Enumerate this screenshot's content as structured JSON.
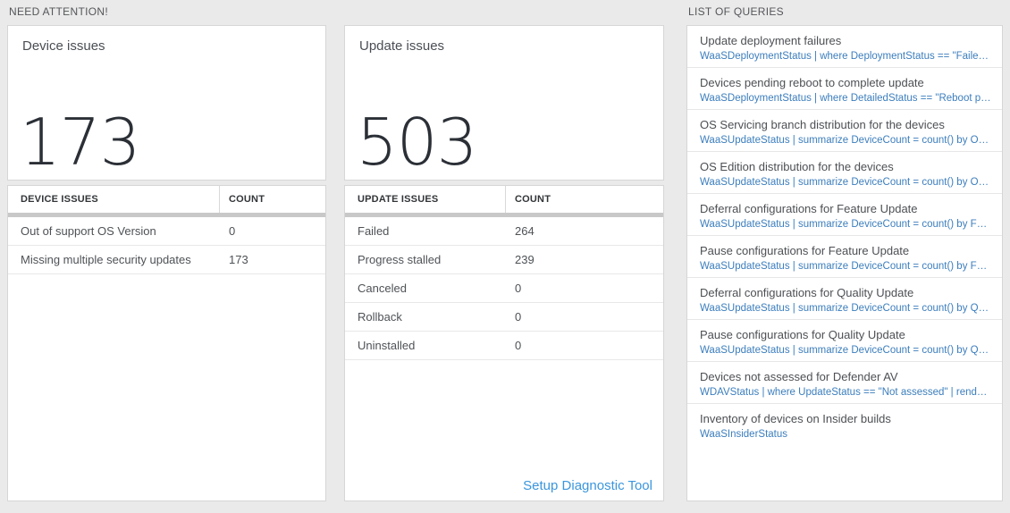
{
  "colors": {
    "page_background": "#eaeaea",
    "card_border": "#d6d6d6",
    "big_number_text": "#2b2f36",
    "table_header_bar": "#c8c8c8",
    "query_link_blue": "#3c7ebd",
    "diagnostic_link_blue": "#3a96dd"
  },
  "need_attention": {
    "section_title": "NEED ATTENTION!",
    "cards": [
      {
        "title": "Device issues",
        "big_number": 173,
        "table": {
          "headers": [
            "DEVICE ISSUES",
            "COUNT"
          ],
          "rows": [
            {
              "label": "Out of support OS Version",
              "count": 0
            },
            {
              "label": "Missing multiple security updates",
              "count": 173
            }
          ]
        }
      },
      {
        "title": "Update issues",
        "big_number": 503,
        "table": {
          "headers": [
            "UPDATE ISSUES",
            "COUNT"
          ],
          "rows": [
            {
              "label": "Failed",
              "count": 264
            },
            {
              "label": "Progress stalled",
              "count": 239
            },
            {
              "label": "Canceled",
              "count": 0
            },
            {
              "label": "Rollback",
              "count": 0
            },
            {
              "label": "Uninstalled",
              "count": 0
            }
          ]
        },
        "footer_link": "Setup Diagnostic Tool"
      }
    ]
  },
  "queries": {
    "section_title": "LIST OF QUERIES",
    "items": [
      {
        "title": "Update deployment failures",
        "query": "WaaSDeploymentStatus | where DeploymentStatus == \"Failed\" |..."
      },
      {
        "title": "Devices pending reboot to complete update",
        "query": "WaaSDeploymentStatus | where DetailedStatus == \"Reboot pend..."
      },
      {
        "title": "OS Servicing branch distribution for the devices",
        "query": "WaaSUpdateStatus | summarize DeviceCount = count() by OSSer..."
      },
      {
        "title": "OS Edition distribution for the devices",
        "query": "WaaSUpdateStatus | summarize DeviceCount = count() by OSEdit..."
      },
      {
        "title": "Deferral configurations for Feature Update",
        "query": "WaaSUpdateStatus | summarize DeviceCount = count() by Featur..."
      },
      {
        "title": "Pause configurations for Feature Update",
        "query": "WaaSUpdateStatus | summarize DeviceCount = count() by Featur..."
      },
      {
        "title": "Deferral configurations for Quality Update",
        "query": "WaaSUpdateStatus | summarize DeviceCount = count() by Qualit..."
      },
      {
        "title": "Pause configurations for Quality Update",
        "query": "WaaSUpdateStatus | summarize DeviceCount = count() by Qualit..."
      },
      {
        "title": "Devices not assessed for Defender AV",
        "query": "WDAVStatus | where UpdateStatus == \"Not assessed\" | render ta..."
      },
      {
        "title": "Inventory of devices on Insider builds",
        "query": "WaaSInsiderStatus"
      }
    ]
  }
}
